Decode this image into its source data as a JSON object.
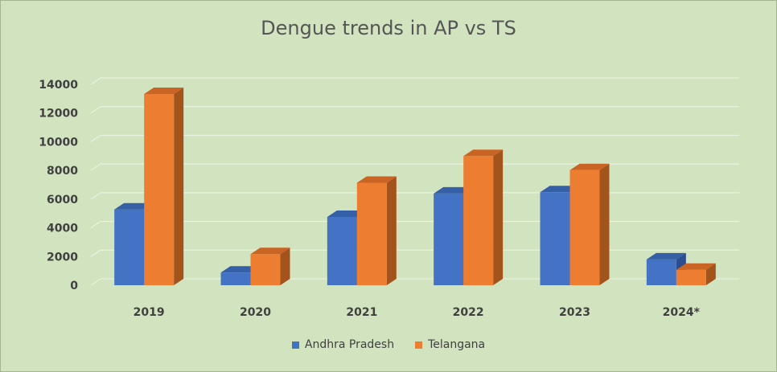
{
  "chart_data": {
    "type": "bar",
    "title": "Dengue trends in AP vs TS",
    "categories": [
      "2019",
      "2020",
      "2021",
      "2022",
      "2023",
      "2024*"
    ],
    "series": [
      {
        "name": "Andhra Pradesh",
        "values": [
          5280,
          880,
          4760,
          6390,
          6480,
          1800
        ],
        "color": "#4472c4",
        "side_color": "#2c4d8e",
        "top_color": "#3560a8"
      },
      {
        "name": "Telangana",
        "values": [
          13330,
          2170,
          7140,
          9000,
          8020,
          1080
        ],
        "color": "#ed7d31",
        "side_color": "#a3541c",
        "top_color": "#c96424"
      }
    ],
    "yticks": [
      0,
      2000,
      4000,
      6000,
      8000,
      10000,
      12000,
      14000
    ],
    "ylim": [
      0,
      14000
    ],
    "grid": true,
    "legend_position": "bottom"
  }
}
